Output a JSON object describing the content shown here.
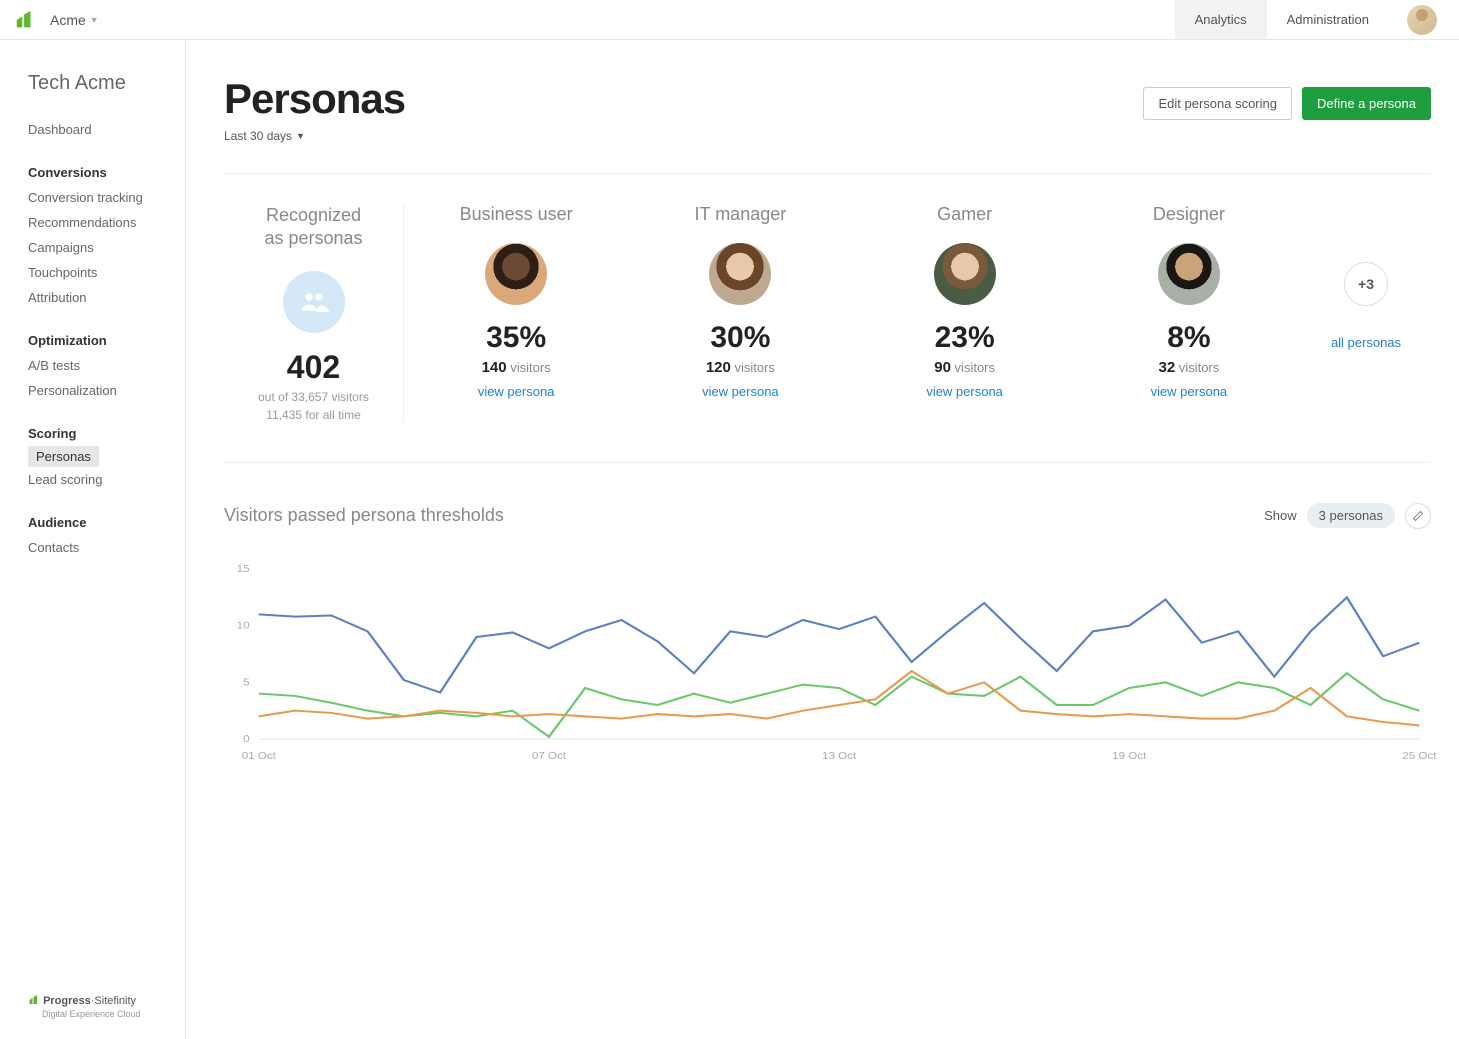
{
  "topbar": {
    "org": "Acme",
    "tabs": [
      {
        "label": "Analytics",
        "active": true
      },
      {
        "label": "Administration",
        "active": false
      }
    ]
  },
  "sidebar": {
    "site": "Tech Acme",
    "items": [
      {
        "label": "Dashboard",
        "type": "item"
      },
      {
        "label": "Conversions",
        "type": "group"
      },
      {
        "label": "Conversion tracking",
        "type": "item"
      },
      {
        "label": "Recommendations",
        "type": "item"
      },
      {
        "label": "Campaigns",
        "type": "item"
      },
      {
        "label": "Touchpoints",
        "type": "item"
      },
      {
        "label": "Attribution",
        "type": "item"
      },
      {
        "label": "Optimization",
        "type": "group"
      },
      {
        "label": "A/B tests",
        "type": "item"
      },
      {
        "label": "Personalization",
        "type": "item"
      },
      {
        "label": "Scoring",
        "type": "group"
      },
      {
        "label": "Personas",
        "type": "item",
        "active": true
      },
      {
        "label": "Lead scoring",
        "type": "item"
      },
      {
        "label": "Audience",
        "type": "group"
      },
      {
        "label": "Contacts",
        "type": "item"
      }
    ],
    "footer": {
      "brand": "Progress Sitefinity",
      "tagline": "Digital Experience Cloud"
    }
  },
  "page": {
    "title": "Personas",
    "edit_btn": "Edit persona scoring",
    "define_btn": "Define a persona",
    "date_filter": "Last 30 days"
  },
  "recognized": {
    "label_l1": "Recognized",
    "label_l2": "as personas",
    "count": "402",
    "sub1": "out of 33,657 visitors",
    "sub2": "11,435 for all time"
  },
  "personas": [
    {
      "name": "Business user",
      "pct": "35%",
      "count": "140",
      "vlabel": "visitors",
      "link": "view persona",
      "avatar": "pav1"
    },
    {
      "name": "IT manager",
      "pct": "30%",
      "count": "120",
      "vlabel": "visitors",
      "link": "view persona",
      "avatar": "pav2"
    },
    {
      "name": "Gamer",
      "pct": "23%",
      "count": "90",
      "vlabel": "visitors",
      "link": "view persona",
      "avatar": "pav3"
    },
    {
      "name": "Designer",
      "pct": "8%",
      "count": "32",
      "vlabel": "visitors",
      "link": "view persona",
      "avatar": "pav4"
    }
  ],
  "more": {
    "badge": "+3",
    "link": "all personas"
  },
  "chart": {
    "title": "Visitors passed persona thresholds",
    "show_label": "Show",
    "pill": "3 personas",
    "ylim": [
      0,
      15
    ],
    "yticks": [
      0,
      5,
      10,
      15
    ],
    "xlabels": [
      "01 Oct",
      "07 Oct",
      "13 Oct",
      "19 Oct",
      "25 Oct"
    ],
    "colors": {
      "s1": "#5b7fc7",
      "s2": "#6bc76b",
      "s3": "#e89a4a"
    },
    "series": {
      "s1": [
        11,
        10.8,
        10.9,
        9.5,
        5.2,
        4.1,
        9,
        9.4,
        8,
        9.5,
        10.5,
        8.6,
        5.8,
        9.5,
        9,
        10.5,
        9.7,
        10.8,
        6.8,
        9.5,
        12,
        8.9,
        6,
        9.5,
        10,
        12.3,
        8.5,
        9.5,
        5.5,
        9.5,
        12.5,
        7.3,
        8.5
      ],
      "s2": [
        4,
        3.8,
        3.2,
        2.5,
        2,
        2.3,
        2,
        2.5,
        0.2,
        4.5,
        3.5,
        3,
        4,
        3.2,
        4,
        4.8,
        4.5,
        3,
        5.5,
        4,
        3.8,
        5.5,
        3,
        3,
        4.5,
        5,
        3.8,
        5,
        4.5,
        3,
        5.8,
        3.5,
        2.5
      ],
      "s3": [
        2,
        2.5,
        2.3,
        1.8,
        2,
        2.5,
        2.3,
        2,
        2.2,
        2,
        1.8,
        2.2,
        2,
        2.2,
        1.8,
        2.5,
        3,
        3.5,
        6,
        4,
        5,
        2.5,
        2.2,
        2,
        2.2,
        2,
        1.8,
        1.8,
        2.5,
        4.5,
        2,
        1.5,
        1.2
      ]
    }
  }
}
